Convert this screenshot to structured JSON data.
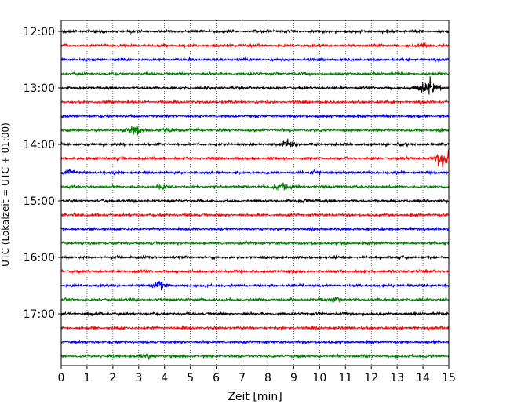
{
  "chart_data": {
    "type": "line",
    "title": "",
    "xlabel": "Zeit  [min]",
    "ylabel": "UTC (Lokalzeit = UTC + 01:00)",
    "xlim": [
      0,
      15
    ],
    "x_ticks": [
      "0",
      "1",
      "2",
      "3",
      "4",
      "5",
      "6",
      "7",
      "8",
      "9",
      "10",
      "11",
      "12",
      "13",
      "14",
      "15"
    ],
    "y_tick_labels": [
      "12:00",
      "13:00",
      "14:00",
      "15:00",
      "16:00",
      "17:00"
    ],
    "grid": "vertical dotted lines at each minute",
    "colors": [
      "#000000",
      "#ff0000",
      "#0000ff",
      "#008000"
    ],
    "traces": [
      {
        "start": "12:00",
        "color": "#000000",
        "events": []
      },
      {
        "start": "12:15",
        "color": "#ff0000",
        "events": [
          {
            "minute": 14.0,
            "amplitude": 2.2
          }
        ]
      },
      {
        "start": "12:30",
        "color": "#0000ff",
        "events": []
      },
      {
        "start": "12:45",
        "color": "#008000",
        "events": []
      },
      {
        "start": "13:00",
        "color": "#000000",
        "events": [
          {
            "minute": 14.2,
            "amplitude": 6.5
          }
        ]
      },
      {
        "start": "13:15",
        "color": "#ff0000",
        "events": []
      },
      {
        "start": "13:30",
        "color": "#0000ff",
        "events": []
      },
      {
        "start": "13:45",
        "color": "#008000",
        "events": [
          {
            "minute": 2.8,
            "amplitude": 4.0
          },
          {
            "minute": 4.2,
            "amplitude": 2.5
          }
        ]
      },
      {
        "start": "14:00",
        "color": "#000000",
        "events": [
          {
            "minute": 8.8,
            "amplitude": 3.5
          },
          {
            "minute": 13.2,
            "amplitude": 1.8
          }
        ]
      },
      {
        "start": "14:15",
        "color": "#ff0000",
        "events": [
          {
            "minute": 14.9,
            "amplitude": 7.0
          }
        ]
      },
      {
        "start": "14:30",
        "color": "#0000ff",
        "events": [
          {
            "minute": 0.3,
            "amplitude": 3.0
          },
          {
            "minute": 9.8,
            "amplitude": 1.8
          }
        ]
      },
      {
        "start": "14:45",
        "color": "#008000",
        "events": [
          {
            "minute": 3.9,
            "amplitude": 2.5
          },
          {
            "minute": 8.5,
            "amplitude": 4.0
          }
        ]
      },
      {
        "start": "15:00",
        "color": "#000000",
        "events": [
          {
            "minute": 9.4,
            "amplitude": 2.2
          }
        ]
      },
      {
        "start": "15:15",
        "color": "#ff0000",
        "events": []
      },
      {
        "start": "15:30",
        "color": "#0000ff",
        "events": []
      },
      {
        "start": "15:45",
        "color": "#008000",
        "events": []
      },
      {
        "start": "16:00",
        "color": "#000000",
        "events": []
      },
      {
        "start": "16:15",
        "color": "#ff0000",
        "events": [
          {
            "minute": 8.9,
            "amplitude": 1.5
          }
        ]
      },
      {
        "start": "16:30",
        "color": "#0000ff",
        "events": [
          {
            "minute": 3.8,
            "amplitude": 3.5
          }
        ]
      },
      {
        "start": "16:45",
        "color": "#008000",
        "events": [
          {
            "minute": 10.6,
            "amplitude": 2.5
          }
        ]
      },
      {
        "start": "17:00",
        "color": "#000000",
        "events": []
      },
      {
        "start": "17:15",
        "color": "#ff0000",
        "events": []
      },
      {
        "start": "17:30",
        "color": "#0000ff",
        "events": []
      },
      {
        "start": "17:45",
        "color": "#008000",
        "events": [
          {
            "minute": 3.3,
            "amplitude": 2.5
          }
        ]
      }
    ]
  }
}
